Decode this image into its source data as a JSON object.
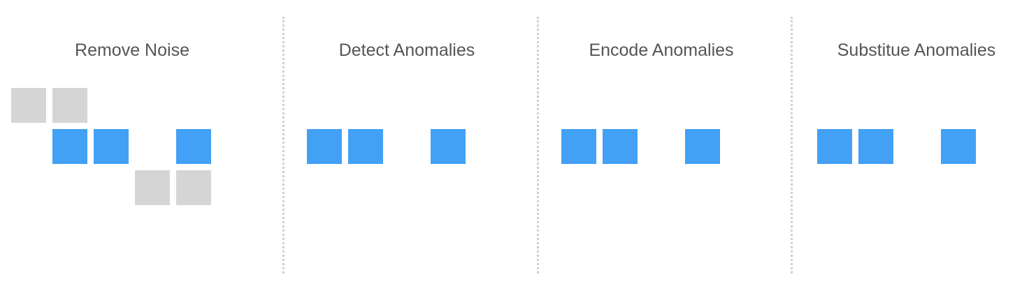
{
  "colors": {
    "noise": "#d5d5d5",
    "normal": "#42a0f5",
    "anomaly": "#1e4d7b",
    "encoded_border": "#1e4d7b",
    "substituted": "#6ebcf7",
    "title_text": "#555555",
    "divider": "#d0d0d0"
  },
  "stages": [
    {
      "title": "Remove Noise",
      "noise_above": [
        true,
        true,
        false,
        false,
        false,
        false
      ],
      "sequence": [
        "normal",
        "normal",
        "anomaly",
        "normal",
        "anomaly"
      ],
      "noise_below": [
        false,
        false,
        false,
        true,
        true,
        false
      ]
    },
    {
      "title": "Detect Anomalies",
      "sequence": [
        "normal",
        "normal",
        "anomaly",
        "normal",
        "anomaly"
      ]
    },
    {
      "title": "Encode Anomalies",
      "sequence": [
        "normal",
        "normal",
        "encoded",
        "normal",
        "encoded"
      ]
    },
    {
      "title": "Substitue Anomalies",
      "sequence": [
        "normal",
        "normal",
        "substituted",
        "normal",
        "substituted"
      ]
    }
  ]
}
